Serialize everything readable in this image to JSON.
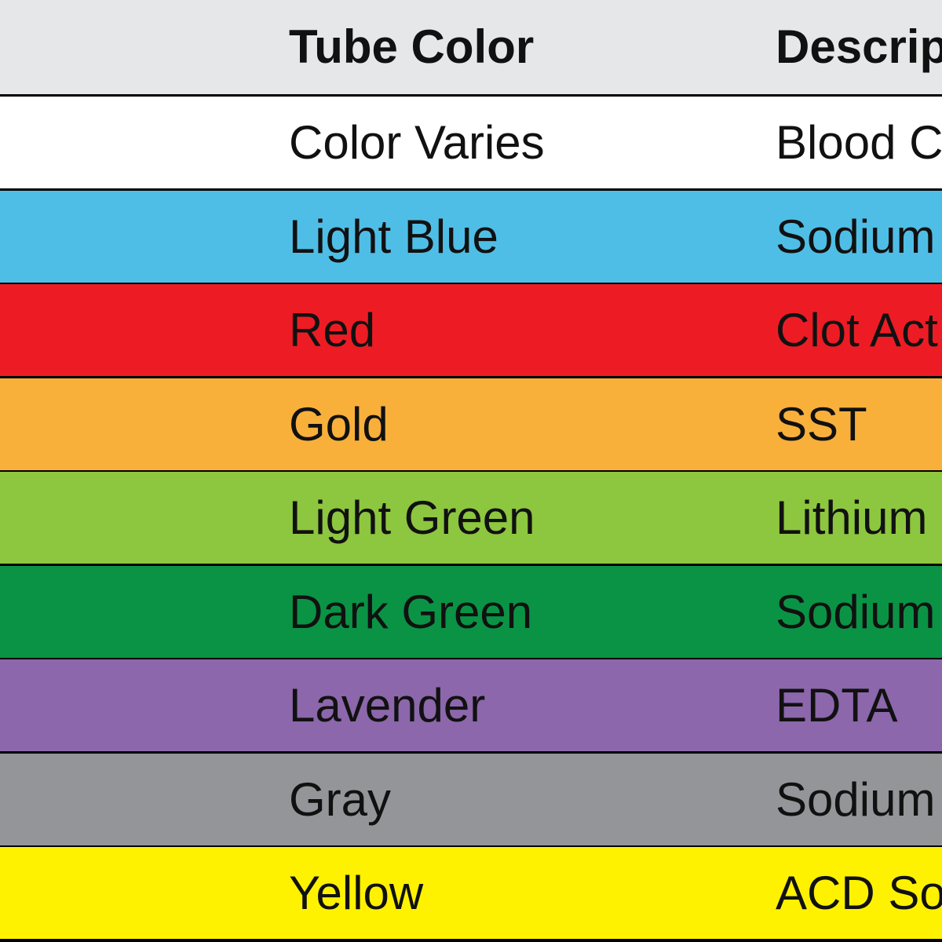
{
  "table": {
    "header": [
      "Tube Color",
      "Descrip"
    ],
    "rows": [
      [
        "Color Varies",
        "Blood C"
      ],
      [
        "Light Blue",
        "Sodium"
      ],
      [
        "Red",
        "Clot Act"
      ],
      [
        "Gold",
        "SST"
      ],
      [
        "Light Green",
        "Lithium"
      ],
      [
        "Dark Green",
        "Sodium"
      ],
      [
        "Lavender",
        "EDTA"
      ],
      [
        "Gray",
        "Sodium"
      ],
      [
        "Yellow",
        "ACD So"
      ]
    ]
  }
}
